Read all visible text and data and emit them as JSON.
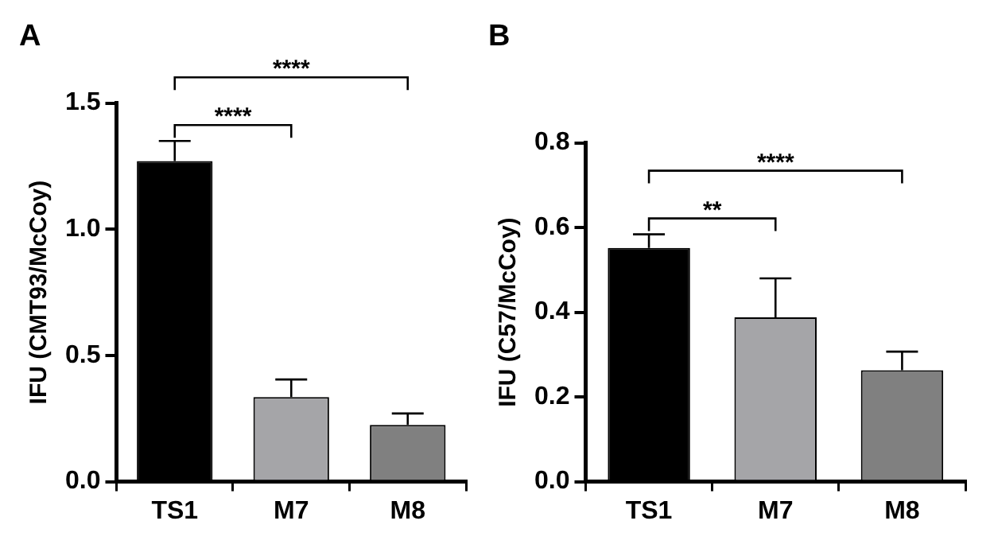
{
  "chart_data": [
    {
      "type": "bar",
      "title": "A",
      "ylabel": "IFU (CMT93/McCoy)",
      "categories": [
        "TS1",
        "M7",
        "M8"
      ],
      "values": [
        1.27,
        0.335,
        0.225
      ],
      "colors": [
        "#000000",
        "#a5a5a8",
        "#808080"
      ],
      "errors": [
        [
          1.27,
          1.35
        ],
        [
          0.335,
          0.405
        ],
        [
          0.225,
          0.27
        ]
      ],
      "ylim": [
        0,
        1.5
      ],
      "yticks": [
        {
          "value": 0,
          "label": "0.0"
        },
        {
          "value": 0.5,
          "label": "0.5"
        },
        {
          "value": 1,
          "label": "1.0"
        },
        {
          "value": 1.5,
          "label": "1.5"
        }
      ],
      "annotations": [
        "****",
        "****"
      ],
      "grid": false
    },
    {
      "type": "bar",
      "title": "B",
      "ylabel": "IFU (C57/McCoy)",
      "categories": [
        "TS1",
        "M7",
        "M8"
      ],
      "values": [
        0.552,
        0.388,
        0.263
      ],
      "colors": [
        "#000000",
        "#a5a5a8",
        "#808080"
      ],
      "errors": [
        [
          0.552,
          0.584
        ],
        [
          0.388,
          0.48
        ],
        [
          0.263,
          0.307
        ]
      ],
      "ylim": [
        0,
        0.8
      ],
      "yticks": [
        {
          "value": 0,
          "label": "0.0"
        },
        {
          "value": 0.2,
          "label": "0.2"
        },
        {
          "value": 0.4,
          "label": "0.4"
        },
        {
          "value": 0.6,
          "label": "0.6"
        },
        {
          "value": 0.8,
          "label": "0.8"
        }
      ],
      "annotations": [
        "**",
        "****"
      ],
      "grid": false
    }
  ]
}
